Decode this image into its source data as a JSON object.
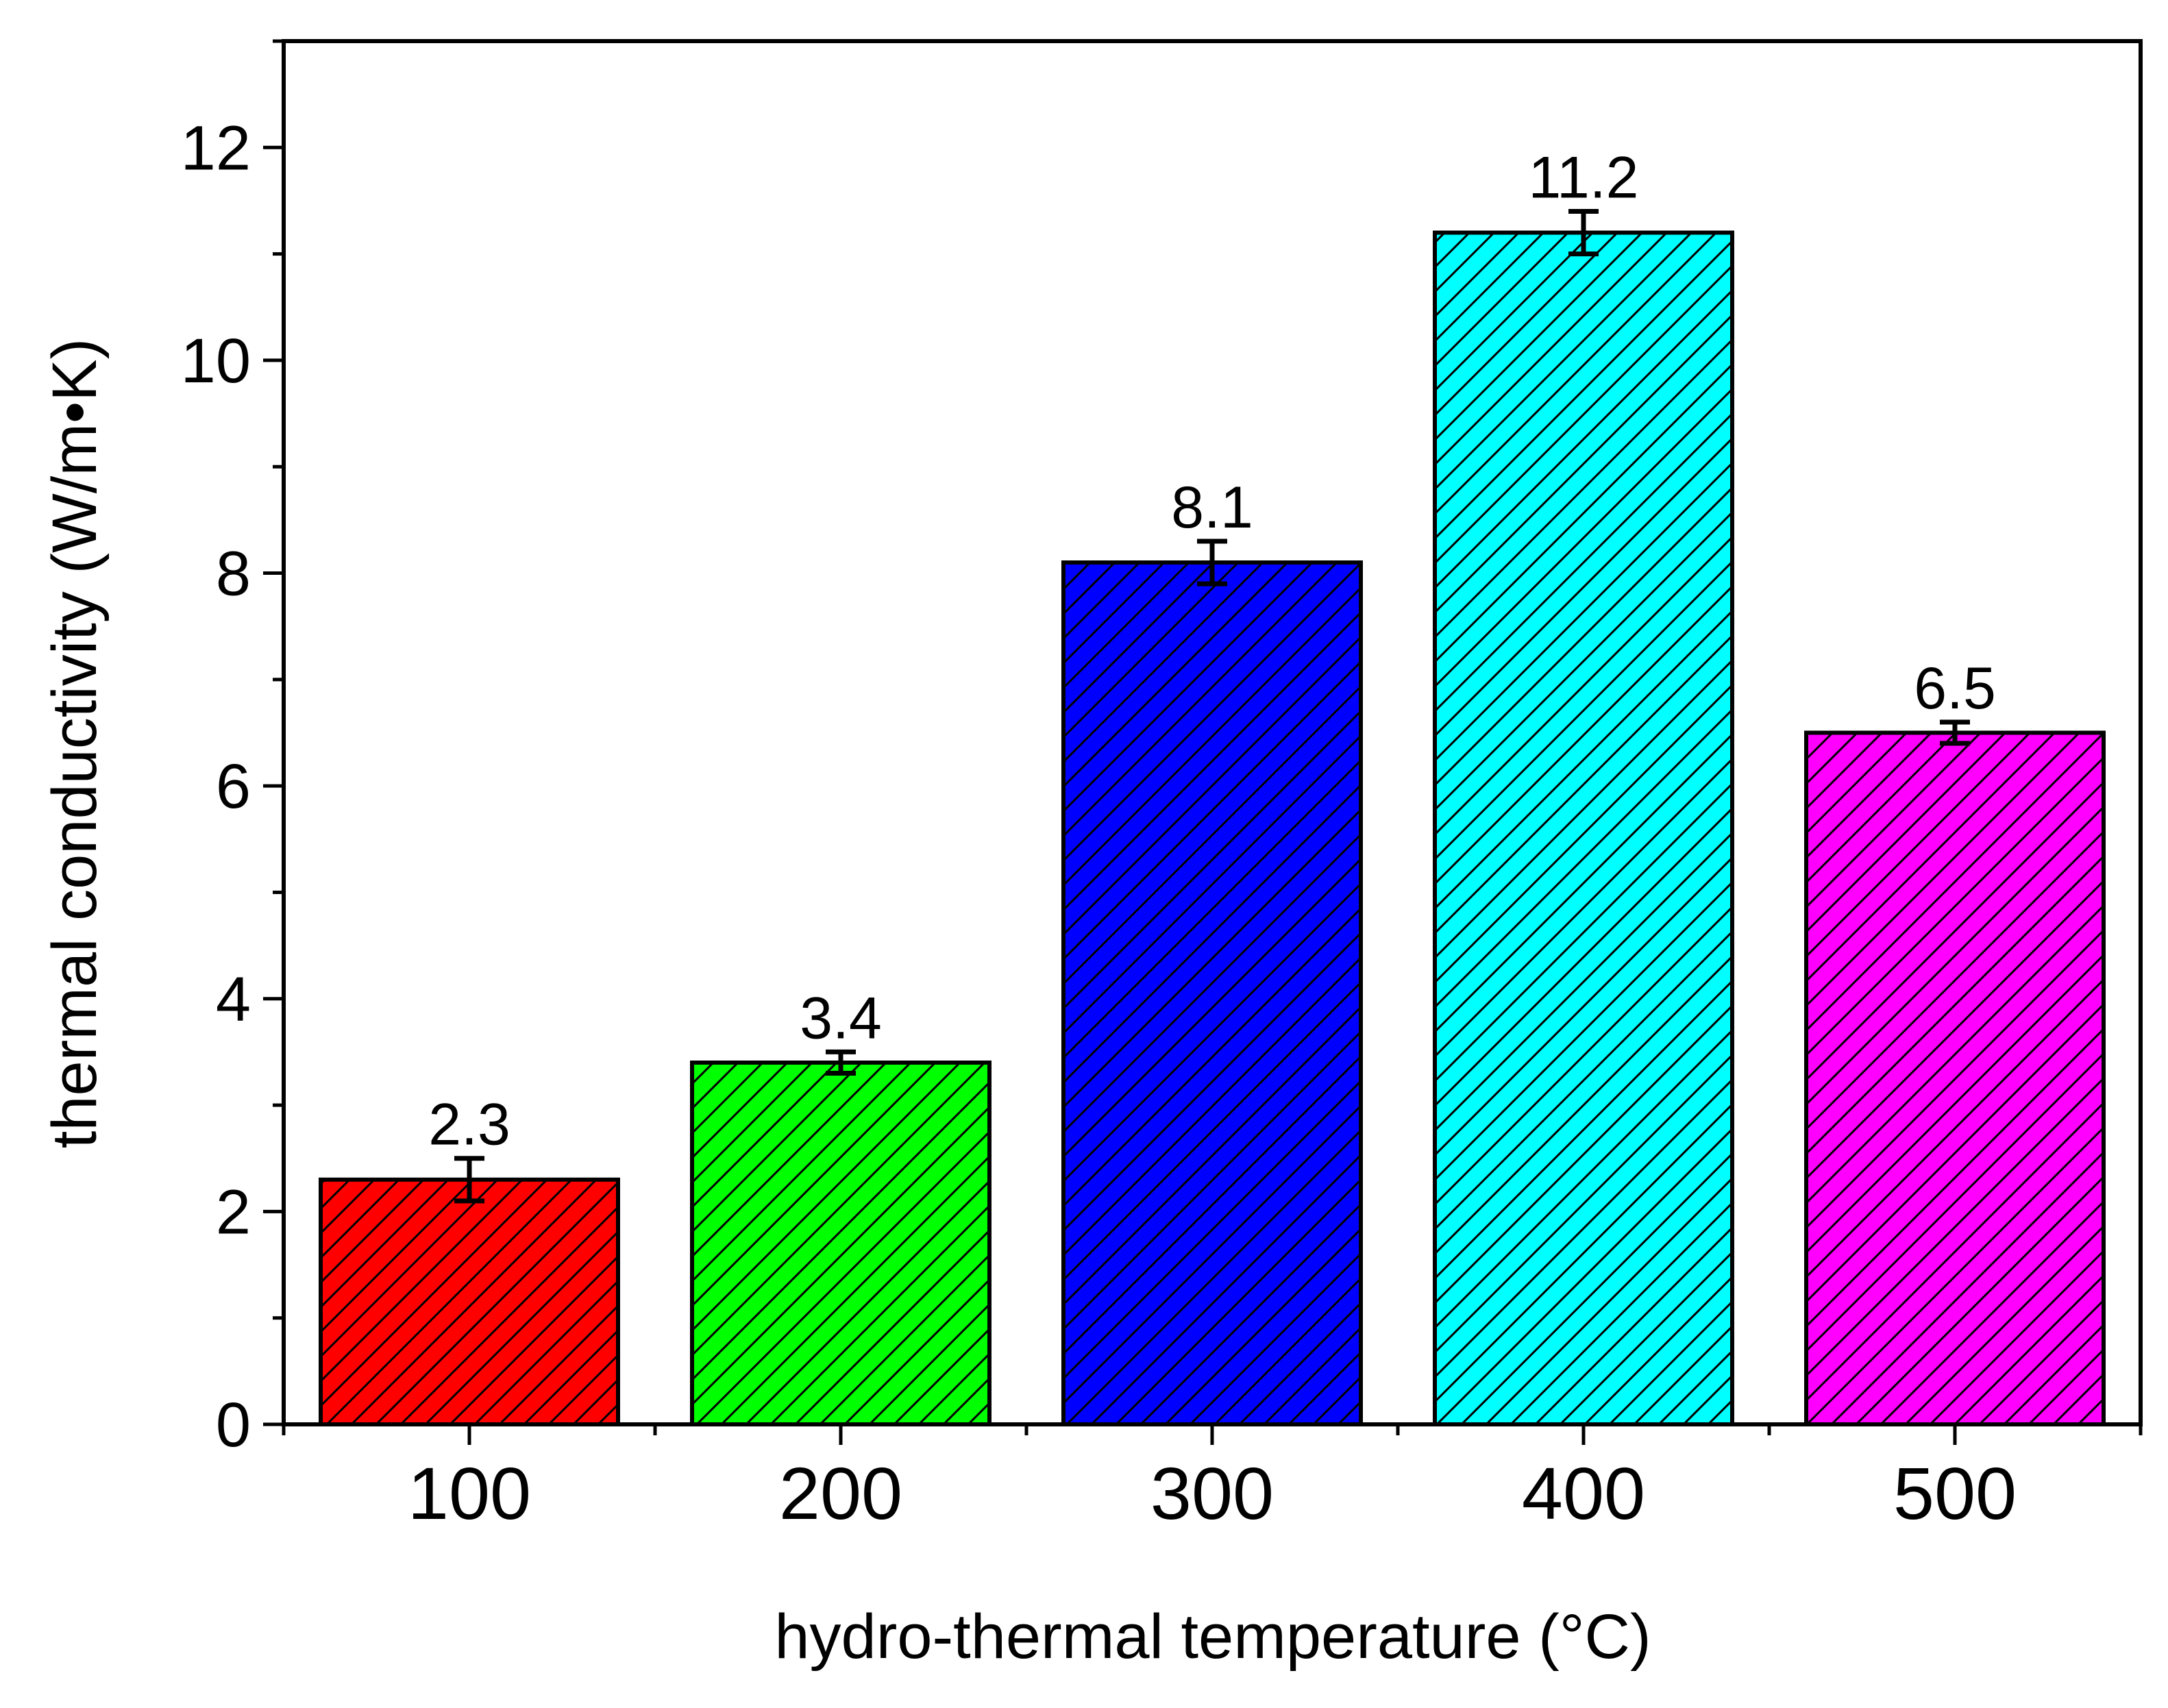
{
  "chart_data": {
    "type": "bar",
    "title": "",
    "xlabel": "hydro-thermal temperature (°C)",
    "ylabel": "thermal conductivity (W/m•K)",
    "categories": [
      "100",
      "200",
      "300",
      "400",
      "500"
    ],
    "values": [
      2.3,
      3.4,
      8.1,
      11.2,
      6.5
    ],
    "value_labels": [
      "2.3",
      "3.4",
      "8.1",
      "11.2",
      "6.5"
    ],
    "errors": [
      0.2,
      0.1,
      0.2,
      0.2,
      0.1
    ],
    "bar_colors": [
      "#ff0000",
      "#00ff00",
      "#0000ff",
      "#00ffff",
      "#ff00ff"
    ],
    "bar_pattern": "diagonal-hatch",
    "ylim": [
      0,
      13
    ],
    "yticks": [
      0,
      2,
      4,
      6,
      8,
      10,
      12
    ],
    "ytick_labels": [
      "0",
      "2",
      "4",
      "6",
      "8",
      "10",
      "12"
    ],
    "y_minor_step": 1,
    "grid": false,
    "legend": "none"
  }
}
